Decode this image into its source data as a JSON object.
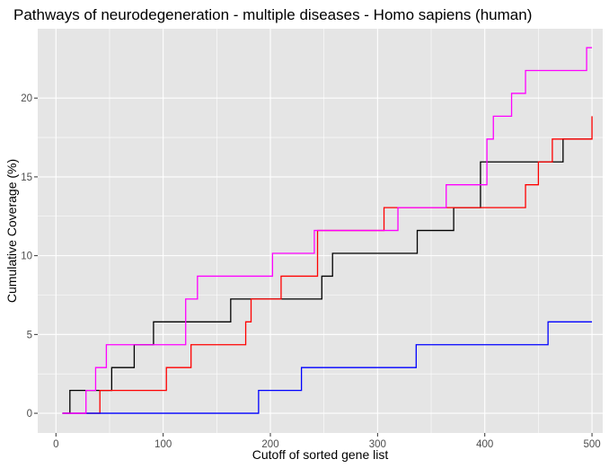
{
  "chart_data": {
    "type": "line",
    "title": "Pathways of neurodegeneration - multiple diseases - Homo sapiens (human)",
    "xlabel": "Cutoff of sorted gene list",
    "ylabel": "Cumulative Coverage (%)",
    "xlim": [
      -17,
      510
    ],
    "ylim": [
      -1.25,
      24.4
    ],
    "xticks": [
      0,
      100,
      200,
      300,
      400,
      500
    ],
    "yticks": [
      0,
      5,
      10,
      15,
      20
    ],
    "xtick_labels": [
      "0",
      "100",
      "200",
      "300",
      "400",
      "500"
    ],
    "ytick_labels": [
      "0",
      "5",
      "10",
      "15",
      "20"
    ],
    "grid": true,
    "background": "#e5e5e5",
    "gridColor": "#ffffff",
    "step": true,
    "series": [
      {
        "color": "#000000",
        "x": [
          6,
          13,
          52,
          73,
          91,
          163,
          248,
          258,
          337,
          371,
          396,
          473,
          500
        ],
        "y": [
          0,
          1.45,
          2.9,
          4.35,
          5.8,
          7.25,
          8.7,
          10.15,
          11.6,
          13.05,
          15.95,
          17.4,
          17.4
        ]
      },
      {
        "color": "#ff0000",
        "x": [
          6,
          41,
          103,
          126,
          177,
          182,
          210,
          244,
          306,
          438,
          450,
          463,
          500
        ],
        "y": [
          0,
          1.45,
          2.9,
          4.35,
          5.8,
          7.25,
          8.7,
          11.6,
          13.05,
          14.5,
          15.95,
          17.4,
          18.85
        ]
      },
      {
        "color": "#0000ff",
        "x": [
          6,
          189,
          229,
          336,
          459,
          500
        ],
        "y": [
          0,
          1.45,
          2.9,
          4.35,
          5.8,
          5.8
        ]
      },
      {
        "color": "#ff00ff",
        "x": [
          6,
          28,
          37,
          47,
          121,
          132,
          202,
          241,
          319,
          364,
          402,
          408,
          425,
          438,
          495,
          500
        ],
        "y": [
          0,
          1.45,
          2.9,
          4.35,
          7.25,
          8.7,
          10.15,
          11.6,
          13.05,
          14.5,
          17.4,
          18.85,
          20.3,
          21.75,
          23.2,
          23.2
        ]
      }
    ]
  }
}
